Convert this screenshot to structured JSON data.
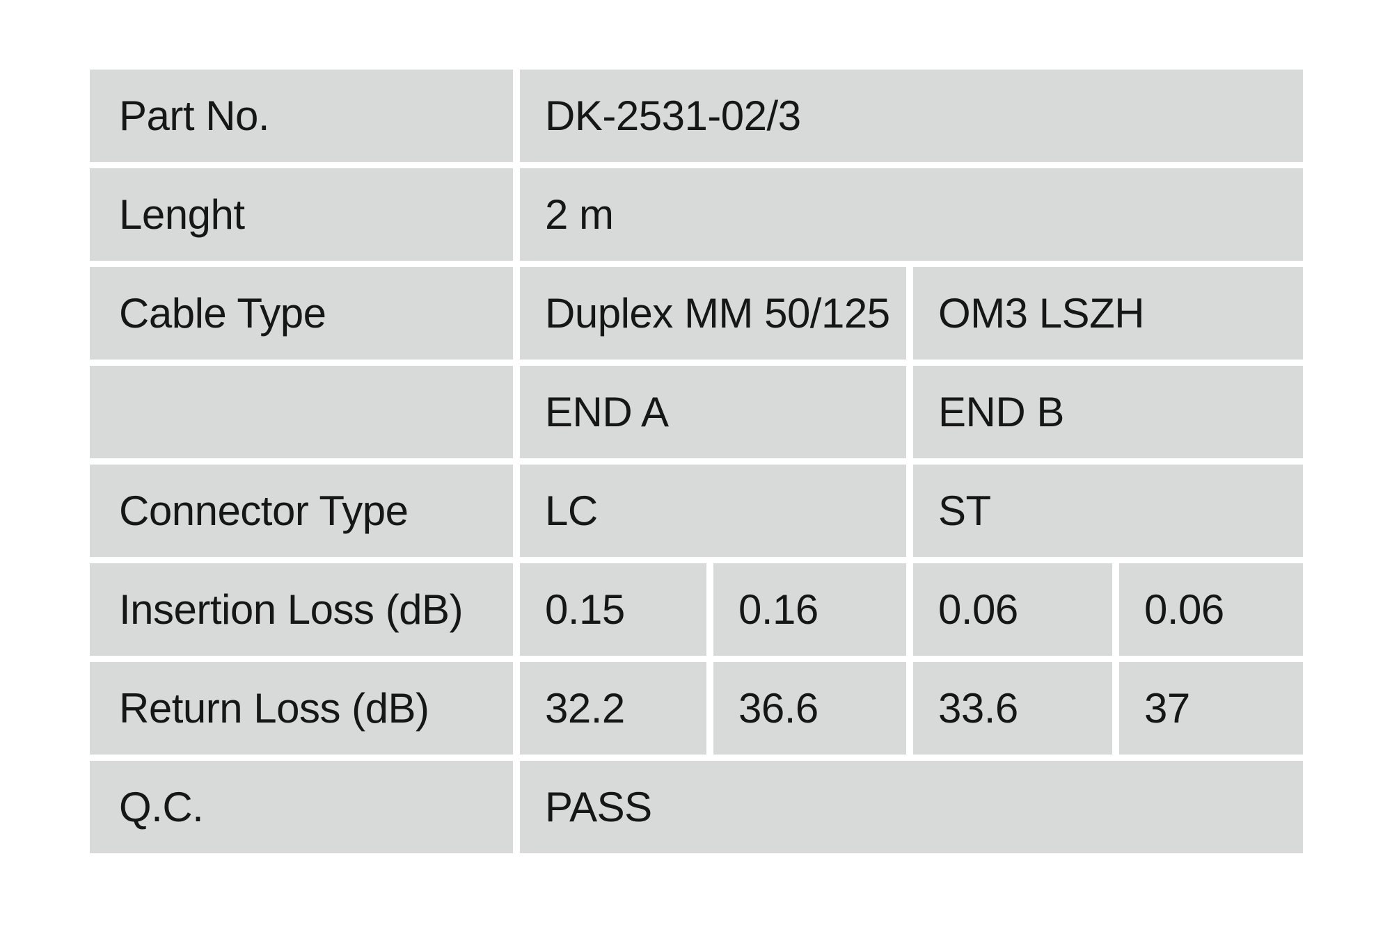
{
  "document": {
    "type": "fiber-patch-cable-qc-spec-table"
  },
  "colors": {
    "page_bg": "#ffffff",
    "cell_bg": "#d8d9d9",
    "text": "#161616"
  },
  "table": {
    "rows": [
      {
        "label": "Part No.",
        "values": [
          {
            "text": "DK-2531-02/3"
          }
        ]
      },
      {
        "label": "Lenght",
        "values": [
          {
            "text": "2 m"
          }
        ]
      },
      {
        "label": "Cable Type",
        "values": [
          {
            "text": "Duplex MM 50/125"
          },
          {
            "text": "OM3 LSZH"
          }
        ]
      },
      {
        "label": "",
        "values": [
          {
            "text": "END A"
          },
          {
            "text": "END B"
          }
        ]
      },
      {
        "label": "Connector Type",
        "values": [
          {
            "text": "LC"
          },
          {
            "text": "ST"
          }
        ]
      },
      {
        "label": "Insertion Loss (dB)",
        "values": [
          {
            "text": "0.15"
          },
          {
            "text": "0.16"
          },
          {
            "text": "0.06"
          },
          {
            "text": "0.06"
          }
        ]
      },
      {
        "label": "Return Loss (dB)",
        "values": [
          {
            "text": "32.2"
          },
          {
            "text": "36.6"
          },
          {
            "text": "33.6"
          },
          {
            "text": "37"
          }
        ]
      },
      {
        "label": "Q.C.",
        "values": [
          {
            "text": "PASS"
          }
        ]
      }
    ]
  }
}
